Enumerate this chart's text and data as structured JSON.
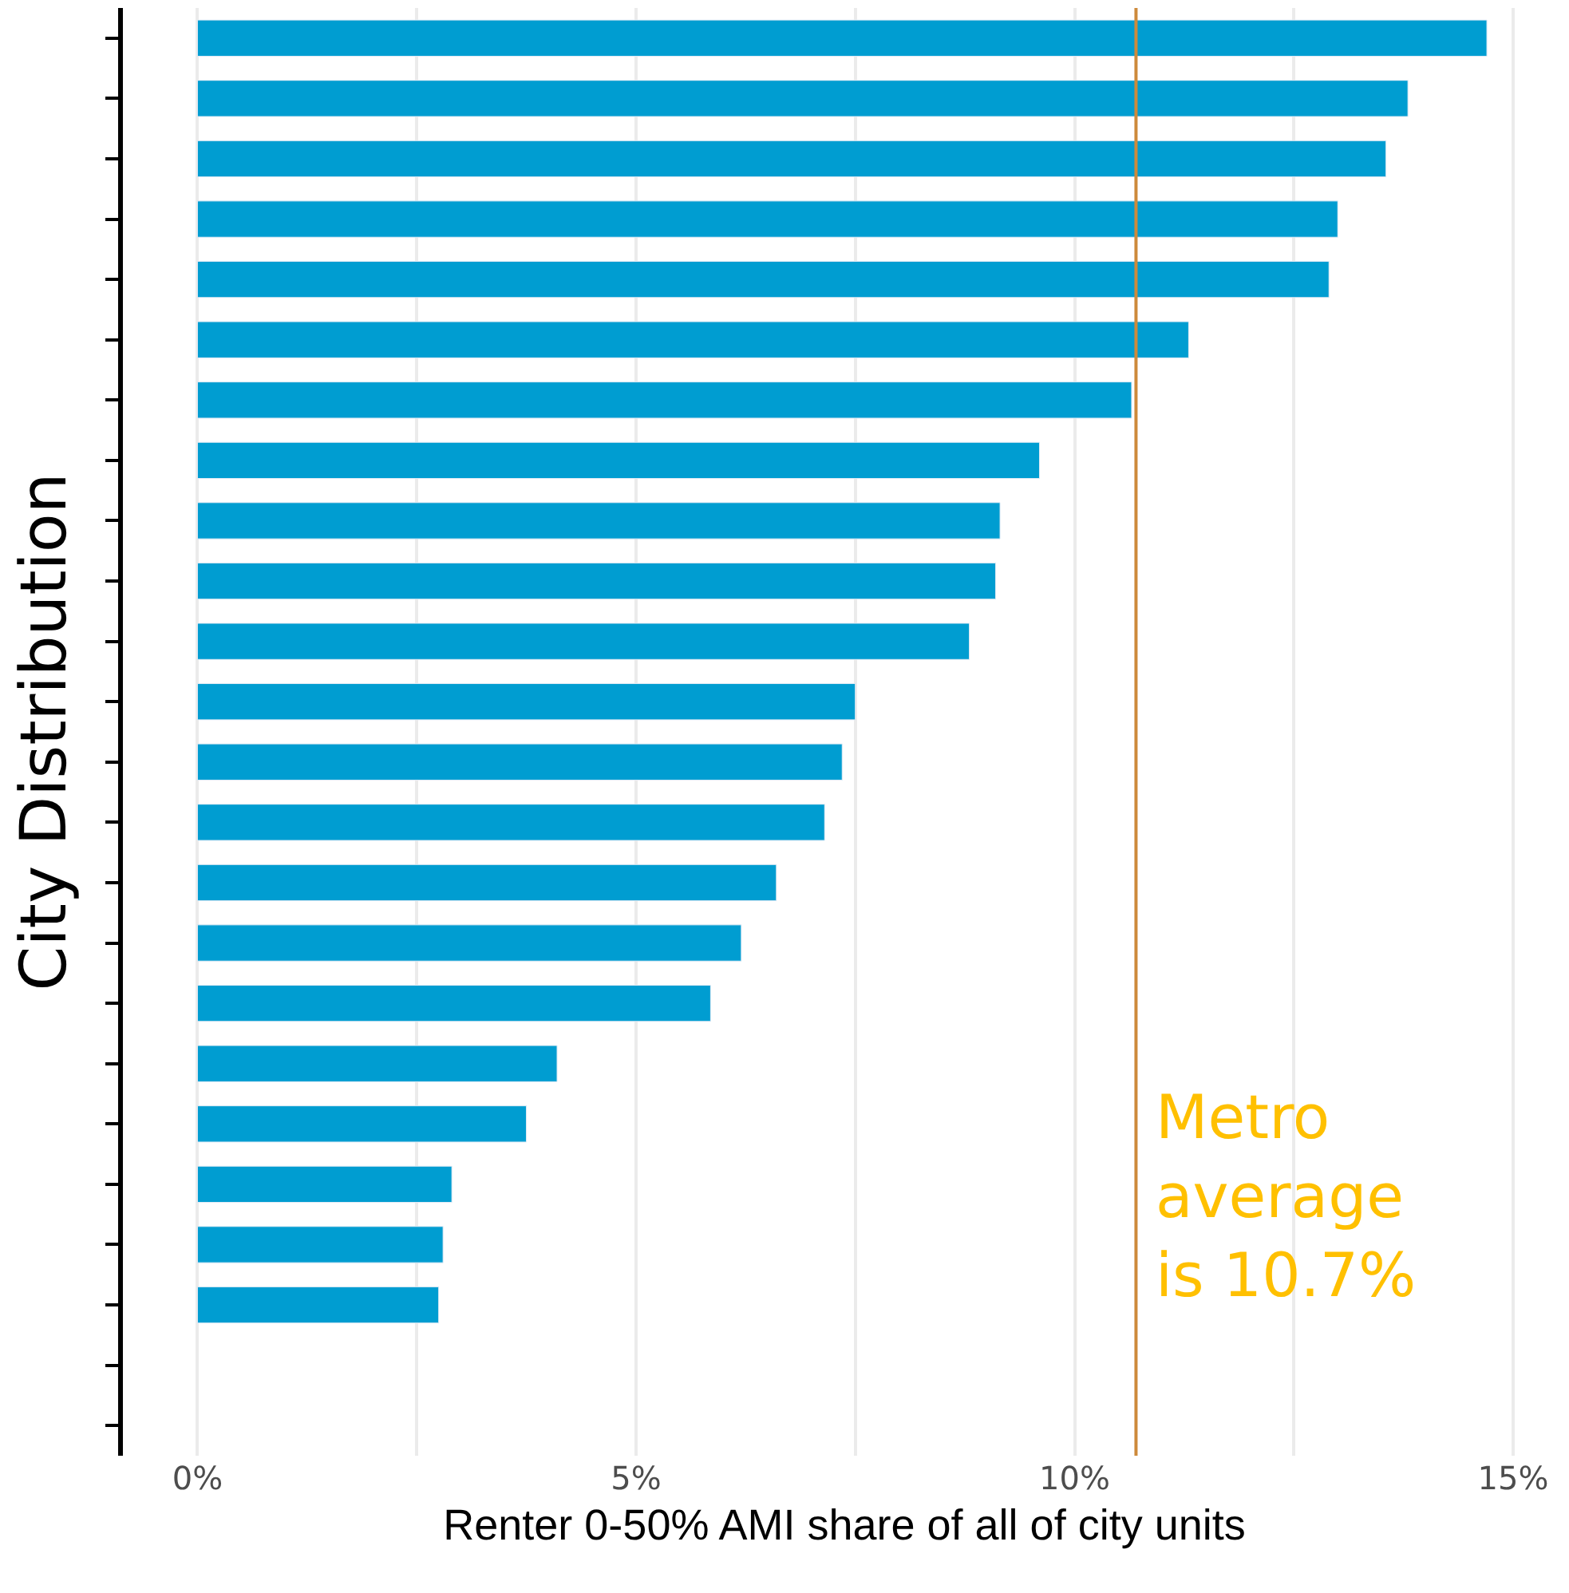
{
  "chart_data": {
    "type": "bar",
    "orientation": "horizontal",
    "xlabel": "Renter 0-50% AMI share of all of city units",
    "ylabel": "City Distribution",
    "categories": [
      null,
      null,
      null,
      null,
      null,
      null,
      null,
      null,
      null,
      null,
      null,
      null,
      null,
      null,
      null,
      null,
      null,
      null,
      null,
      null,
      null,
      null,
      null,
      null
    ],
    "values": [
      14.7,
      13.8,
      13.55,
      13.0,
      12.9,
      11.3,
      10.65,
      9.6,
      9.15,
      9.1,
      8.8,
      7.5,
      7.35,
      7.15,
      6.6,
      6.2,
      5.85,
      4.1,
      3.75,
      2.9,
      2.8,
      2.75,
      null,
      null
    ],
    "color": "#009dd1",
    "xlim": [
      -0.85,
      15.6
    ],
    "xticks": [
      {
        "value": 0,
        "label": "0%"
      },
      {
        "value": 2.5,
        "label": null
      },
      {
        "value": 5,
        "label": "5%"
      },
      {
        "value": 7.5,
        "label": null
      },
      {
        "value": 10,
        "label": "10%"
      },
      {
        "value": 12.5,
        "label": null
      },
      {
        "value": 15,
        "label": "15%"
      }
    ],
    "grid": "x",
    "tick_labels": "x",
    "ref_lines": [
      {
        "axis": "x",
        "value": 10.7,
        "color": "#cd8a3b"
      }
    ],
    "annotations": [
      {
        "text": "Metro\naverage\nis 10.7%",
        "x": 10.7
      }
    ]
  }
}
